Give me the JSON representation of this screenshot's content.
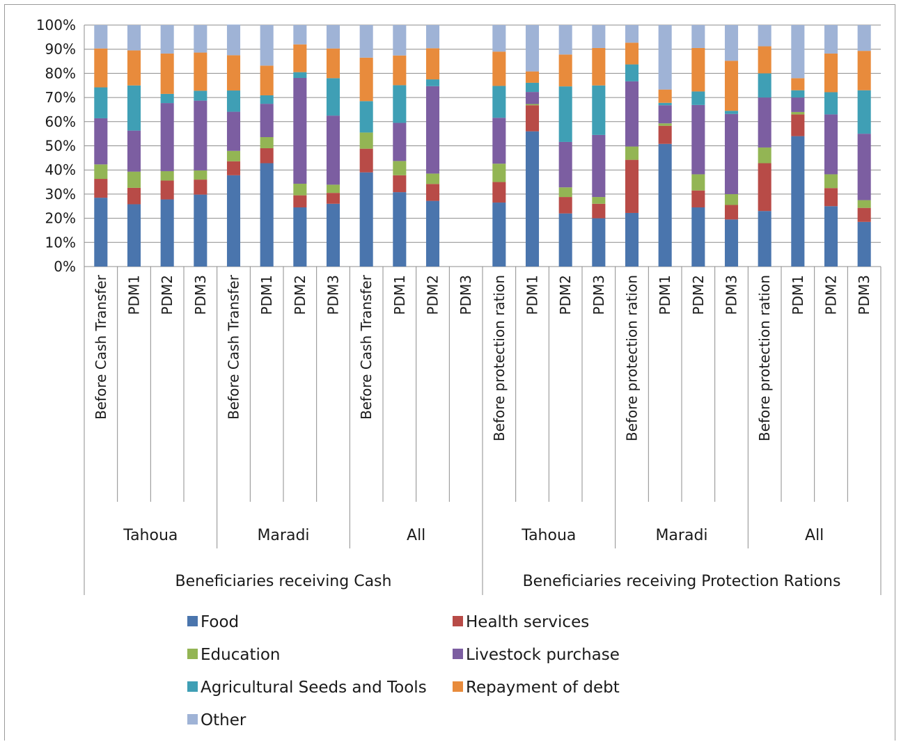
{
  "chart_data": {
    "type": "bar",
    "stacked": true,
    "percent": true,
    "title": "",
    "xlabel": "",
    "ylabel": "",
    "ylim": [
      0,
      100
    ],
    "y_ticks": [
      "0%",
      "10%",
      "20%",
      "30%",
      "40%",
      "50%",
      "60%",
      "70%",
      "80%",
      "90%",
      "100%"
    ],
    "grid": true,
    "legend_position": "bottom",
    "groups": [
      {
        "label": "Beneficiaries receiving Cash",
        "subgroups": [
          {
            "label": "Tahoua",
            "categories": [
              "Before Cash Transfer",
              "PDM1",
              "PDM2",
              "PDM3"
            ]
          },
          {
            "label": "Maradi",
            "categories": [
              "Before Cash Transfer",
              "PDM1",
              "PDM2",
              "PDM3"
            ]
          },
          {
            "label": "All",
            "categories": [
              "Before Cash Transfer",
              "PDM1",
              "PDM2",
              "PDM3"
            ]
          }
        ]
      },
      {
        "label": "Beneficiaries receiving Protection Rations",
        "subgroups": [
          {
            "label": "Tahoua",
            "categories": [
              "Before protection ration",
              "PDM1",
              "PDM2",
              "PDM3"
            ]
          },
          {
            "label": "Maradi",
            "categories": [
              "Before protection ration",
              "PDM1",
              "PDM2",
              "PDM3"
            ]
          },
          {
            "label": "All",
            "categories": [
              "Before protection ration",
              "PDM1",
              "PDM2",
              "PDM3"
            ]
          }
        ]
      }
    ],
    "series": [
      {
        "name": "Food",
        "color": "#4a75ad",
        "values": [
          28.5,
          25.8,
          27.8,
          29.8,
          37.8,
          42.8,
          24.5,
          26.0,
          39.0,
          30.8,
          27.2,
          0,
          26.5,
          56.0,
          22.0,
          20.0,
          22.2,
          50.8,
          24.5,
          19.5,
          23.0,
          54.0,
          25.0,
          18.5
        ]
      },
      {
        "name": "Health services",
        "color": "#b84b47",
        "values": [
          7.8,
          6.8,
          7.8,
          6.2,
          5.8,
          6.2,
          5.0,
          4.5,
          9.8,
          7.0,
          7.0,
          0,
          8.5,
          10.8,
          6.8,
          6.0,
          22.0,
          7.5,
          7.0,
          6.0,
          19.8,
          9.0,
          7.5,
          5.8
        ]
      },
      {
        "name": "Education",
        "color": "#93b554",
        "values": [
          6.0,
          6.7,
          3.9,
          3.8,
          4.3,
          4.6,
          4.8,
          3.4,
          6.7,
          5.9,
          4.3,
          0,
          7.6,
          0.5,
          4.0,
          2.8,
          5.5,
          1.0,
          6.7,
          4.5,
          6.5,
          1.0,
          5.7,
          3.2
        ]
      },
      {
        "name": "Livestock purchase",
        "color": "#7c5ea1",
        "values": [
          19.1,
          17.0,
          28.2,
          28.9,
          16.2,
          13.8,
          43.8,
          28.6,
          0,
          15.8,
          36.2,
          0,
          19.0,
          5.0,
          18.8,
          25.7,
          27.0,
          7.5,
          28.7,
          33.2,
          20.7,
          6.0,
          24.8,
          27.5
        ]
      },
      {
        "name": "Agricultural Seeds and Tools",
        "color": "#3f9fb5",
        "values": [
          12.8,
          18.7,
          3.8,
          4.1,
          8.8,
          3.5,
          2.4,
          15.5,
          13.0,
          15.6,
          2.8,
          0,
          13.2,
          3.8,
          23.0,
          20.5,
          7.0,
          1.0,
          5.6,
          1.3,
          10.0,
          3.0,
          9.2,
          18.0
        ]
      },
      {
        "name": "Repayment of debt",
        "color": "#e88b3c",
        "values": [
          16.1,
          14.5,
          16.7,
          15.8,
          14.6,
          12.3,
          11.5,
          12.3,
          18.0,
          12.3,
          12.9,
          0,
          14.2,
          4.7,
          13.2,
          15.5,
          9.0,
          5.5,
          18.0,
          20.7,
          11.2,
          5.0,
          16.0,
          16.3
        ]
      },
      {
        "name": "Other",
        "color": "#9fb3d6",
        "values": [
          9.7,
          10.5,
          11.8,
          11.4,
          12.7,
          16.8,
          8.0,
          9.7,
          13.5,
          12.6,
          9.6,
          0,
          11.0,
          19.2,
          12.2,
          9.5,
          7.3,
          26.7,
          9.5,
          14.8,
          8.8,
          22.0,
          11.8,
          10.7
        ]
      }
    ]
  }
}
